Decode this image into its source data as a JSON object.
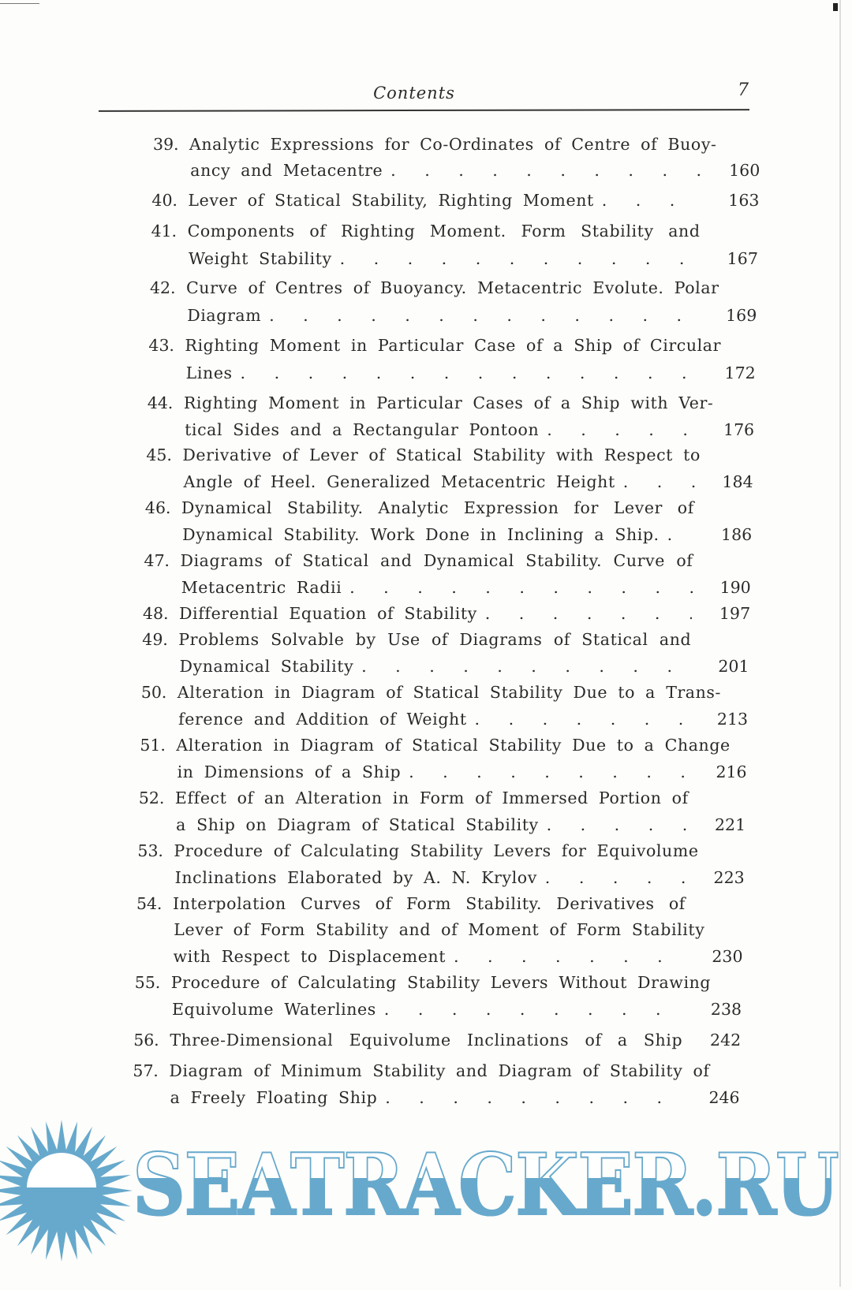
{
  "header": {
    "title": "Contents",
    "page_number": "7"
  },
  "entries": [
    {
      "num": "39.",
      "lines": [
        "Analytic Expressions for Co-Ordinates of Centre of Buoy-",
        "ancy and Metacentre"
      ],
      "page": "160"
    },
    {
      "num": "40.",
      "lines": [
        "Lever of Statical Stability, Righting Moment"
      ],
      "page": "163"
    },
    {
      "num": "41.",
      "lines": [
        "Components of Righting Moment. Form Stability and",
        "Weight Stability"
      ],
      "page": "167"
    },
    {
      "num": "42.",
      "lines": [
        "Curve of Centres of Buoyancy. Metacentric Evolute. Polar",
        "Diagram"
      ],
      "page": "169"
    },
    {
      "num": "43.",
      "lines": [
        "Righting Moment in Particular Case of a Ship of Circular",
        "Lines"
      ],
      "page": "172"
    },
    {
      "num": "44.",
      "lines": [
        "Righting Moment in Particular Cases of a Ship with Ver-",
        "tical Sides and a Rectangular Pontoon"
      ],
      "page": "176"
    },
    {
      "num": "45.",
      "lines": [
        "Derivative of Lever of Statical Stability with Respect to",
        "Angle of Heel. Generalized Metacentric Height"
      ],
      "page": "184"
    },
    {
      "num": "46.",
      "lines": [
        "Dynamical Stability. Analytic Expression for Lever of",
        "Dynamical Stability. Work Done in Inclining a Ship."
      ],
      "page": "186"
    },
    {
      "num": "47.",
      "lines": [
        "Diagrams of Statical and Dynamical Stability. Curve of",
        "Metacentric Radii"
      ],
      "page": "190"
    },
    {
      "num": "48.",
      "lines": [
        "Differential Equation of Stability"
      ],
      "page": "197"
    },
    {
      "num": "49.",
      "lines": [
        "Problems Solvable by Use of Diagrams of Statical and",
        "Dynamical Stability"
      ],
      "page": "201"
    },
    {
      "num": "50.",
      "lines": [
        "Alteration in Diagram of Statical Stability Due to a Trans-",
        "ference and Addition of Weight"
      ],
      "page": "213"
    },
    {
      "num": "51.",
      "lines": [
        "Alteration in Diagram of Statical Stability Due to a Change",
        "in Dimensions of a Ship"
      ],
      "page": "216"
    },
    {
      "num": "52.",
      "lines": [
        "Effect of an Alteration in Form of Immersed Portion of",
        "a Ship on Diagram of Statical Stability"
      ],
      "page": "221"
    },
    {
      "num": "53.",
      "lines": [
        "Procedure of Calculating Stability Levers for Equivolume",
        "Inclinations Elaborated by A. N. Krylov"
      ],
      "page": "223"
    },
    {
      "num": "54.",
      "lines": [
        "Interpolation Curves of Form Stability. Derivatives of",
        "Lever of Form Stability and of Moment of Form Stability",
        "with Respect to Displacement"
      ],
      "page": "230"
    },
    {
      "num": "55.",
      "lines": [
        "Procedure of Calculating Stability Levers Without Drawing",
        "Equivolume Waterlines"
      ],
      "page": "238"
    },
    {
      "num": "56.",
      "lines": [
        "Three-Dimensional Equivolume Inclinations of a Ship"
      ],
      "page": "242",
      "no_leader": true
    },
    {
      "num": "57.",
      "lines": [
        "Diagram of Minimum Stability and Diagram of Stability of",
        "a Freely Floating Ship"
      ],
      "page": "246"
    }
  ],
  "watermark": {
    "text": "SEATRACKER.RU",
    "color": "#67a9cc",
    "icon": "sun-over-water-icon"
  }
}
